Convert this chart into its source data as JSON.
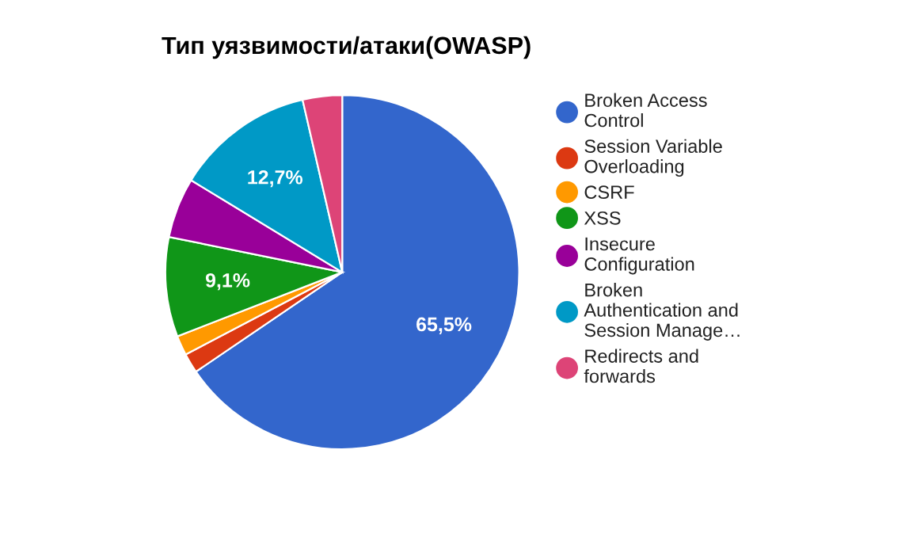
{
  "chart_data": {
    "type": "pie",
    "title": "Тип уязвимости/атаки(OWASP)",
    "categories": [
      "Broken Access\nControl",
      "Session Variable\nOverloading",
      "CSRF",
      "XSS",
      "Insecure\nConfiguration",
      "Broken\nAuthentication and\nSession Manage…",
      "Redirects and\nforwards"
    ],
    "values": [
      65.5,
      1.8,
      1.8,
      9.1,
      5.5,
      12.7,
      3.6
    ],
    "colors": [
      "#3366cc",
      "#dc3912",
      "#ff9900",
      "#109618",
      "#990099",
      "#0099c6",
      "#dd4477"
    ],
    "value_labels": [
      "65,5%",
      null,
      null,
      "9,1%",
      null,
      "12,7%",
      null
    ],
    "legend": "right"
  }
}
